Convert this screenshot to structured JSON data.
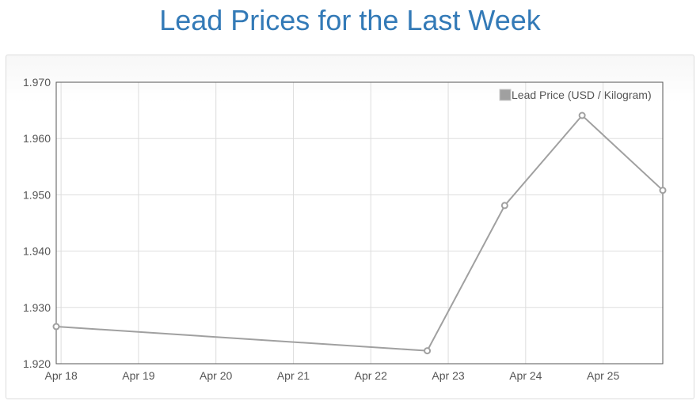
{
  "page": {
    "title": "Lead Prices for the Last Week"
  },
  "chart_data": {
    "type": "line",
    "title": "Lead Prices for the Last Week",
    "xlabel": "",
    "ylabel": "",
    "x_ticks": [
      "Apr 18",
      "Apr 19",
      "Apr 20",
      "Apr 21",
      "Apr 22",
      "Apr 23",
      "Apr 24",
      "Apr 25"
    ],
    "y_ticks": [
      "1.920",
      "1.930",
      "1.940",
      "1.950",
      "1.960",
      "1.970"
    ],
    "ylim": [
      1.92,
      1.97
    ],
    "xlim": [
      "2024-04-17T22:30",
      "2024-04-25T18:30"
    ],
    "grid": true,
    "legend": {
      "position": "top-right"
    },
    "series": [
      {
        "name": "Lead Price (USD / Kilogram)",
        "color": "#a0a0a0",
        "points": [
          {
            "x": "2024-04-17T22:30",
            "y": 1.9266
          },
          {
            "x": "2024-04-22T17:30",
            "y": 1.9223
          },
          {
            "x": "2024-04-23T17:30",
            "y": 1.9481
          },
          {
            "x": "2024-04-24T17:30",
            "y": 1.9641
          },
          {
            "x": "2024-04-25T18:30",
            "y": 1.9508
          }
        ]
      }
    ]
  }
}
